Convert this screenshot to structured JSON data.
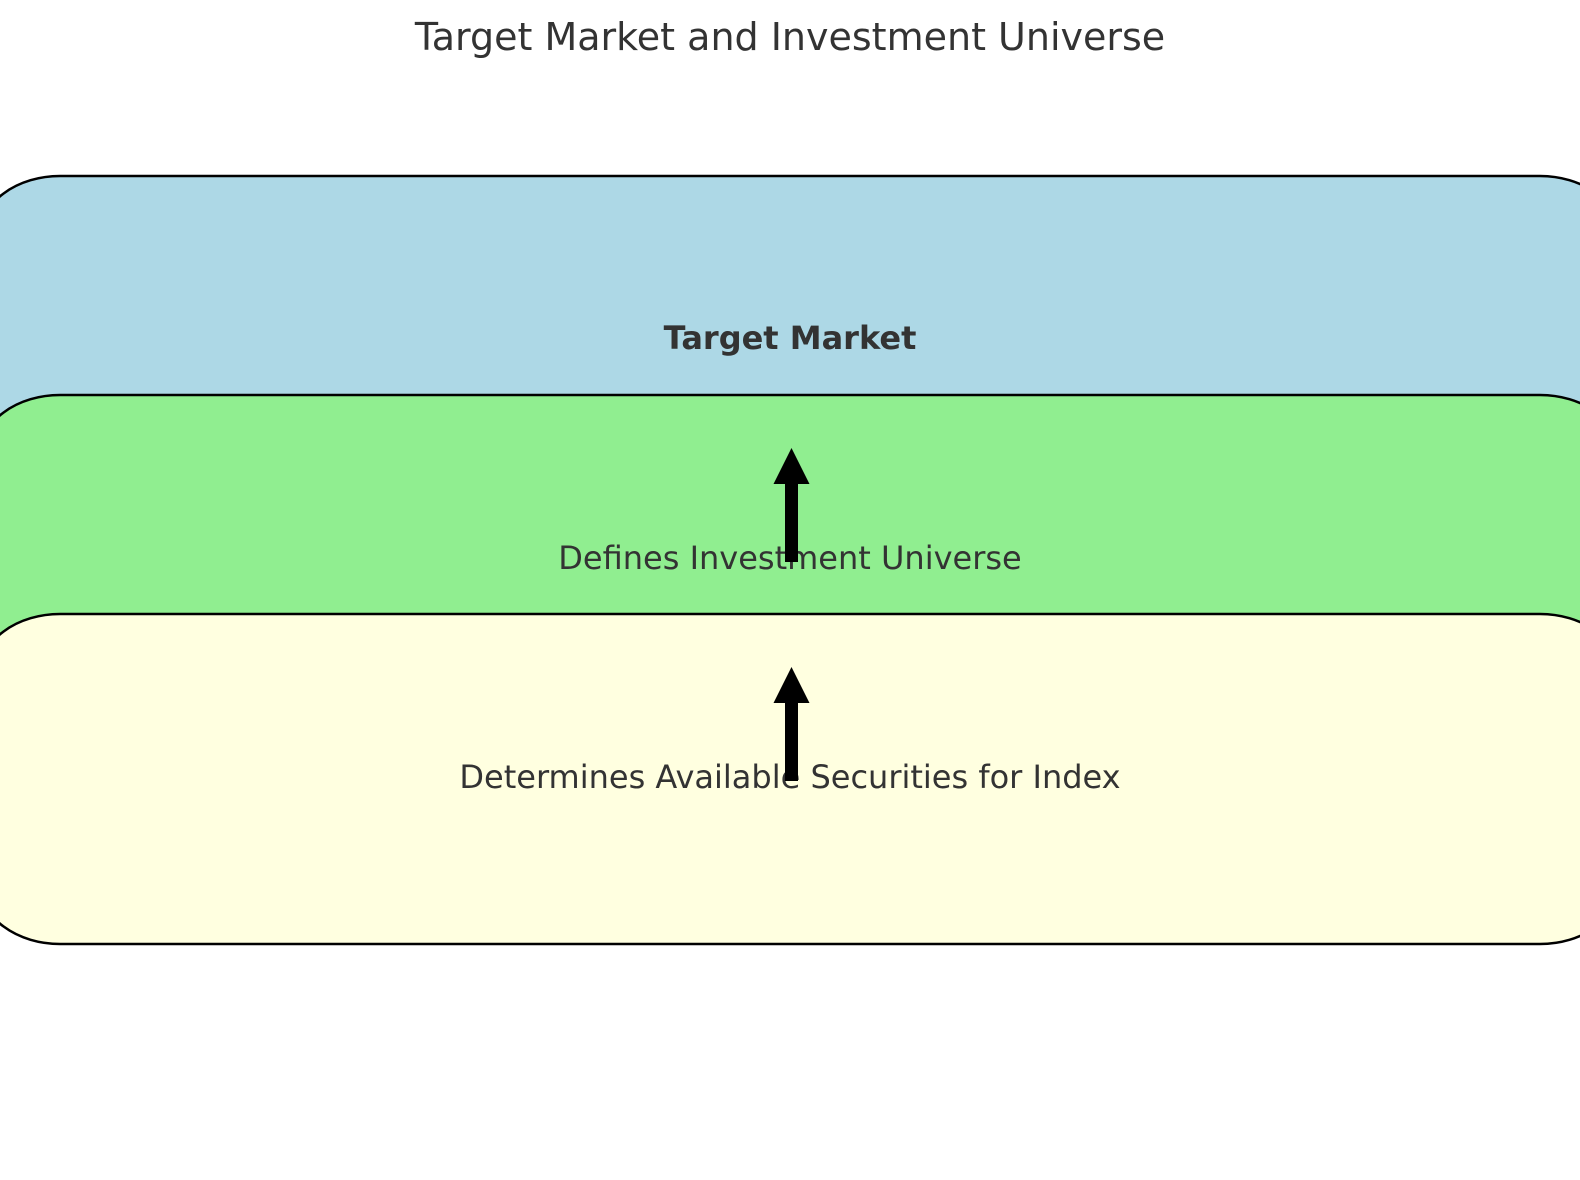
{
  "title": "Target Market and Investment Universe",
  "layers": [
    {
      "label": "Target Market",
      "color": "#ADD8E6",
      "bold": true
    },
    {
      "label": "Defines Investment Universe",
      "color": "#90EE90",
      "bold": false
    },
    {
      "label": "Determines Available Securities for Index",
      "color": "#FFFFE0",
      "bold": false
    }
  ],
  "arrows": [
    {
      "from": "Defines Investment Universe",
      "to": "Target Market"
    },
    {
      "from": "Determines Available Securities for Index",
      "to": "Defines Investment Universe"
    }
  ],
  "colors": {
    "text": "#333333",
    "outline": "#000000",
    "arrow": "#000000"
  }
}
